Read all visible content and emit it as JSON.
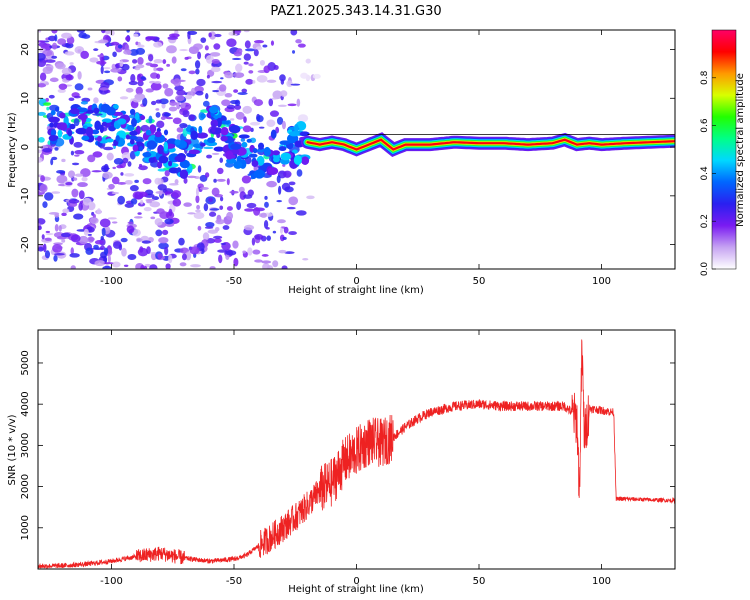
{
  "chart_data": [
    {
      "type": "heatmap",
      "title": "PAZ1.2025.343.14.31.G30",
      "xlabel": "Height of straight line (km)",
      "ylabel": "Frequency (Hz)",
      "xlim": [
        -130,
        130
      ],
      "ylim": [
        -25,
        24
      ],
      "xticks": [
        -100,
        -50,
        0,
        50,
        100
      ],
      "xtick_labels": [
        "-100",
        "-50",
        "0",
        "50",
        "100"
      ],
      "yticks": [
        -20,
        -10,
        0,
        10,
        20
      ],
      "ytick_labels": [
        "-20",
        "-10",
        "0",
        "10",
        "20"
      ],
      "colorbar": {
        "label": "Normalized spectral amplitude",
        "range": [
          0,
          1
        ],
        "ticks": [
          0.0,
          0.2,
          0.4,
          0.6,
          0.8
        ],
        "tick_labels": [
          "0.0",
          "0.2",
          "0.4",
          "0.6",
          "0.8"
        ],
        "stops": [
          "#ffffff",
          "#c6a3f2",
          "#7a1bf2",
          "#2a20f0",
          "#0066ff",
          "#00d8ff",
          "#00ff88",
          "#22ff00",
          "#d8ff00",
          "#ff9900",
          "#ff0000",
          "#ff0066"
        ]
      },
      "ridge_x": [
        -120,
        -110,
        -100,
        -90,
        -80,
        -70,
        -60,
        -50,
        -40,
        -30,
        -25,
        -20,
        -15,
        -10,
        -5,
        0,
        5,
        10,
        15,
        20,
        30,
        40,
        50,
        60,
        70,
        80,
        85,
        90,
        95,
        100,
        110,
        120,
        130
      ],
      "ridge_y": [
        5,
        4,
        5,
        3,
        0,
        -2,
        5,
        0,
        -4,
        1,
        0,
        1,
        0.5,
        1,
        0.5,
        -0.5,
        0.5,
        1.5,
        -0.5,
        0.5,
        0.5,
        1,
        0.8,
        0.8,
        0.5,
        0.8,
        1.5,
        0.5,
        0.8,
        0.5,
        0.8,
        1,
        1.2
      ]
    },
    {
      "type": "line",
      "xlabel": "Height of straight line (km)",
      "ylabel": "SNR (10 * v/v)",
      "xlim": [
        -130,
        130
      ],
      "ylim": [
        0,
        5800
      ],
      "xticks": [
        -100,
        -50,
        0,
        50,
        100
      ],
      "xtick_labels": [
        "-100",
        "-50",
        "0",
        "50",
        "100"
      ],
      "yticks": [
        1000,
        2000,
        3000,
        4000,
        5000
      ],
      "ytick_labels": [
        "1000",
        "2000",
        "3000",
        "4000",
        "5000"
      ],
      "color": "#ee2222",
      "x": [
        -130,
        -120,
        -110,
        -100,
        -90,
        -80,
        -70,
        -60,
        -50,
        -45,
        -40,
        -35,
        -30,
        -25,
        -20,
        -15,
        -10,
        -5,
        0,
        5,
        10,
        15,
        20,
        25,
        30,
        40,
        50,
        60,
        70,
        80,
        85,
        88,
        90,
        91,
        92,
        93,
        95,
        100,
        105,
        106,
        110,
        120,
        130
      ],
      "y": [
        70,
        80,
        120,
        190,
        300,
        380,
        260,
        190,
        240,
        330,
        560,
        760,
        1000,
        1250,
        1550,
        1900,
        2100,
        2600,
        2850,
        3100,
        3050,
        3200,
        3450,
        3650,
        3800,
        3950,
        4000,
        3950,
        3950,
        3950,
        3950,
        3800,
        3600,
        1800,
        5400,
        3200,
        3900,
        3850,
        3800,
        1700,
        1700,
        1680,
        1660
      ]
    }
  ]
}
